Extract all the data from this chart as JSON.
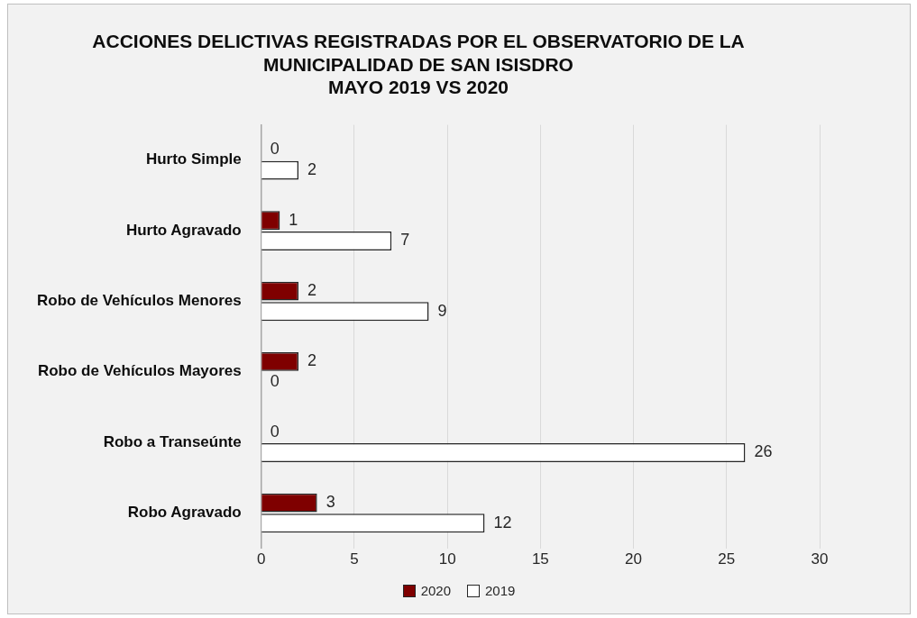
{
  "chart_data": {
    "type": "bar",
    "orientation": "horizontal",
    "title": "ACCIONES DELICTIVAS REGISTRADAS POR EL OBSERVATORIO DE LA\nMUNICIPALIDAD DE SAN ISISDRO\nMAYO 2019 VS 2020",
    "categories": [
      "Hurto Simple",
      "Hurto Agravado",
      "Robo de Vehículos Menores",
      "Robo de Vehículos Mayores",
      "Robo a Transeúnte",
      "Robo Agravado"
    ],
    "series": [
      {
        "name": "2020",
        "color": "#7f0000",
        "values": [
          0,
          1,
          2,
          2,
          0,
          3
        ]
      },
      {
        "name": "2019",
        "color": "#ffffff",
        "values": [
          2,
          7,
          9,
          0,
          26,
          12
        ]
      }
    ],
    "xlim": [
      0,
      30
    ],
    "xticks": [
      0,
      5,
      10,
      15,
      20,
      25,
      30
    ],
    "grid": "x",
    "legend": "bottom",
    "data_labels": true
  }
}
